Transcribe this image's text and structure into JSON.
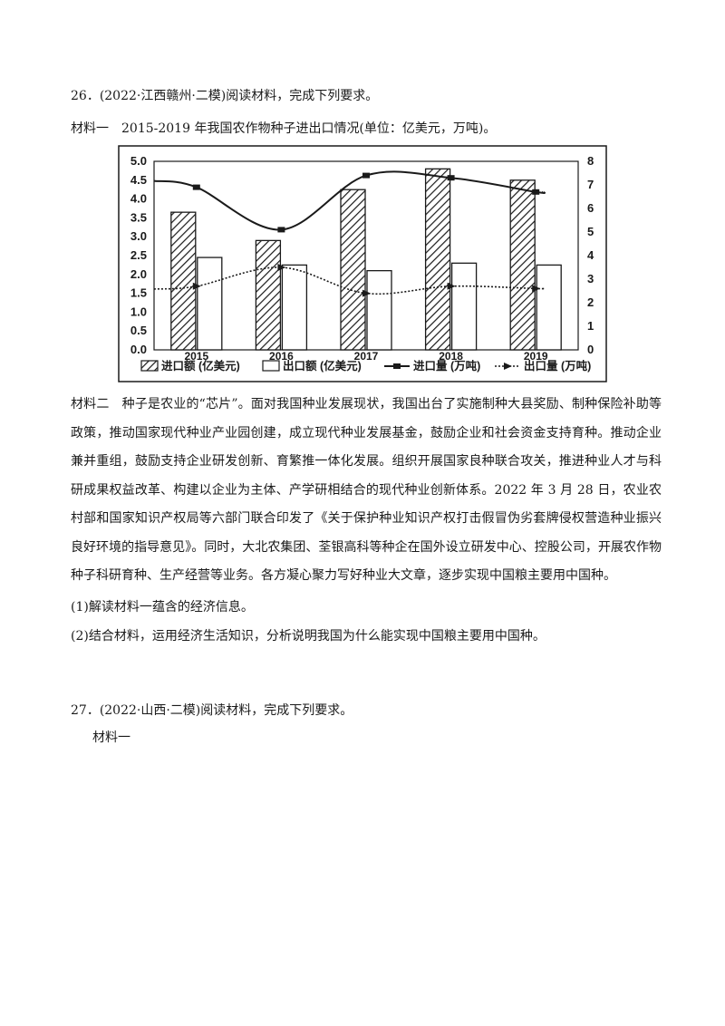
{
  "question26": {
    "heading": "26．(2022·江西赣州·二模)阅读材料，完成下列要求。",
    "material1_intro": "材料一　2015-2019 年我国农作物种子进出口情况(单位：亿美元，万吨)。",
    "material2": "材料二　种子是农业的“芯片”。面对我国种业发展现状，我国出台了实施制种大县奖励、制种保险补助等政策，推动国家现代种业产业园创建，成立现代种业发展基金，鼓励企业和社会资金支持育种。推动企业兼并重组，鼓励支持企业研发创新、育繁推一体化发展。组织开展国家良种联合攻关，推进种业人才与科研成果权益改革、构建以企业为主体、产学研相结合的现代种业创新体系。2022 年 3 月 28 日，农业农村部和国家知识产权局等六部门联合印发了《关于保护种业知识产权打击假冒伪劣套牌侵权营造种业振兴良好环境的指导意见》。同时，大北农集团、荃银高科等种企在国外设立研发中心、控股公司，开展农作物种子科研育种、生产经营等业务。各方凝心聚力写好种业大文章，逐步实现中国粮主要用中国种。",
    "q1": "(1)解读材料一蕴含的经济信息。",
    "q2": "(2)结合材料，运用经济生活知识，分析说明我国为什么能实现中国粮主要用中国种。"
  },
  "question27": {
    "heading": "27．(2022·山西·二模)阅读材料，完成下列要求。",
    "material1_intro": "材料一"
  },
  "chart_data": {
    "type": "bar",
    "categories": [
      "2015",
      "2016",
      "2017",
      "2018",
      "2019"
    ],
    "series": [
      {
        "name": "进口额 (亿美元)",
        "type": "bar",
        "axis": "left",
        "values": [
          3.65,
          2.9,
          4.25,
          4.8,
          4.5
        ]
      },
      {
        "name": "出口额 (亿美元)",
        "type": "bar",
        "axis": "left",
        "values": [
          2.45,
          2.25,
          2.1,
          2.3,
          2.25
        ]
      },
      {
        "name": "进口量 (万吨)",
        "type": "line",
        "axis": "right",
        "values": [
          6.9,
          5.1,
          7.4,
          7.3,
          6.7
        ]
      },
      {
        "name": "出口量 (万吨)",
        "type": "line",
        "axis": "right",
        "values": [
          2.7,
          3.5,
          2.4,
          2.7,
          2.6
        ]
      }
    ],
    "left_axis": {
      "ticks": [
        "0.0",
        "0.5",
        "1.0",
        "1.5",
        "2.0",
        "2.5",
        "3.0",
        "3.5",
        "4.0",
        "4.5",
        "5.0"
      ],
      "ylim": [
        0,
        5
      ]
    },
    "right_axis": {
      "ticks": [
        "0",
        "1",
        "2",
        "3",
        "4",
        "5",
        "6",
        "7",
        "8"
      ],
      "ylim": [
        0,
        8
      ]
    },
    "legend_position": "bottom",
    "colors": {
      "ink": "#1a1a1a",
      "paper": "#ffffff"
    }
  }
}
